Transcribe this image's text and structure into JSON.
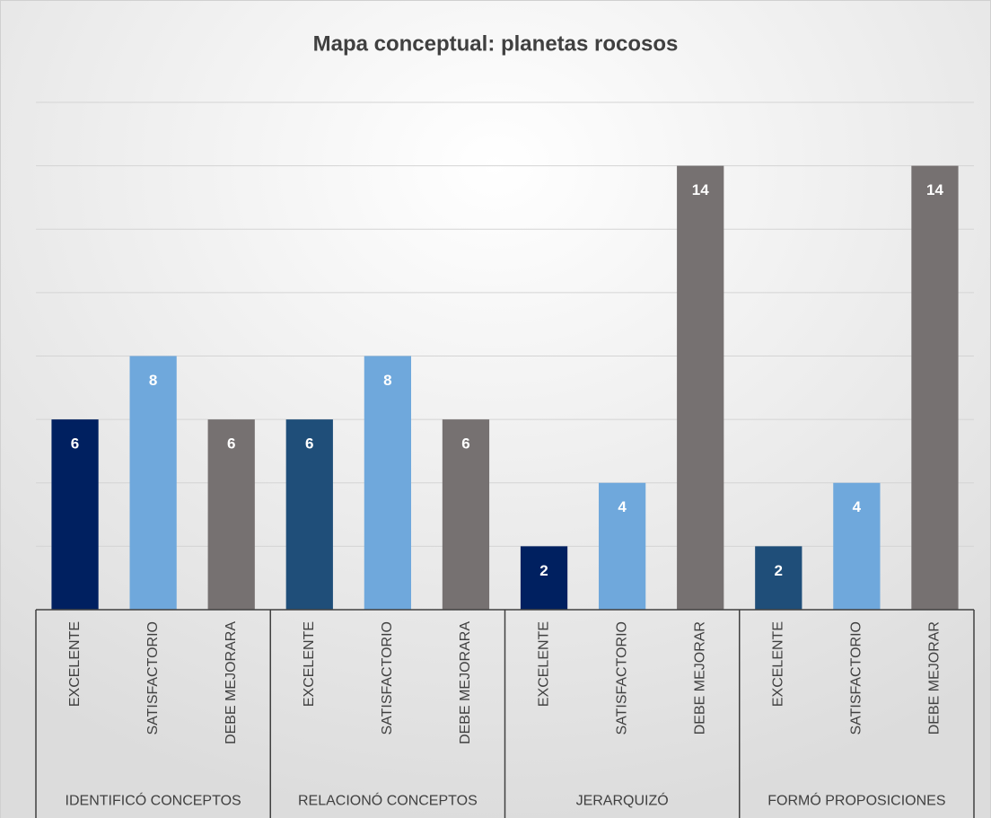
{
  "chart_data": {
    "type": "bar",
    "title": "Mapa conceptual: planetas rocosos",
    "categories": [
      "EXCELENTE",
      "SATISFACTORIO",
      "DEBE MEJORARA",
      "EXCELENTE",
      "SATISFACTORIO",
      "DEBE MEJORARA",
      "EXCELENTE",
      "SATISFACTORIO",
      "DEBE MEJORAR",
      "EXCELENTE",
      "SATISFACTORIO",
      "DEBE MEJORAR"
    ],
    "groups": [
      "IDENTIFICÓ CONCEPTOS",
      "RELACIONÓ  CONCEPTOS",
      "JERARQUIZÓ",
      "FORMÓ PROPOSICIONES"
    ],
    "values": [
      6,
      8,
      6,
      6,
      8,
      6,
      2,
      4,
      14,
      2,
      4,
      14
    ],
    "colors": [
      "#002060",
      "#6fa8dc",
      "#767171",
      "#1f4e79",
      "#6fa8dc",
      "#767171",
      "#002060",
      "#6fa8dc",
      "#767171",
      "#1f4e79",
      "#6fa8dc",
      "#767171"
    ],
    "ylim": [
      0,
      16
    ],
    "yticks": [
      0,
      2,
      4,
      6,
      8,
      10,
      12,
      14,
      16
    ],
    "grid": true
  }
}
